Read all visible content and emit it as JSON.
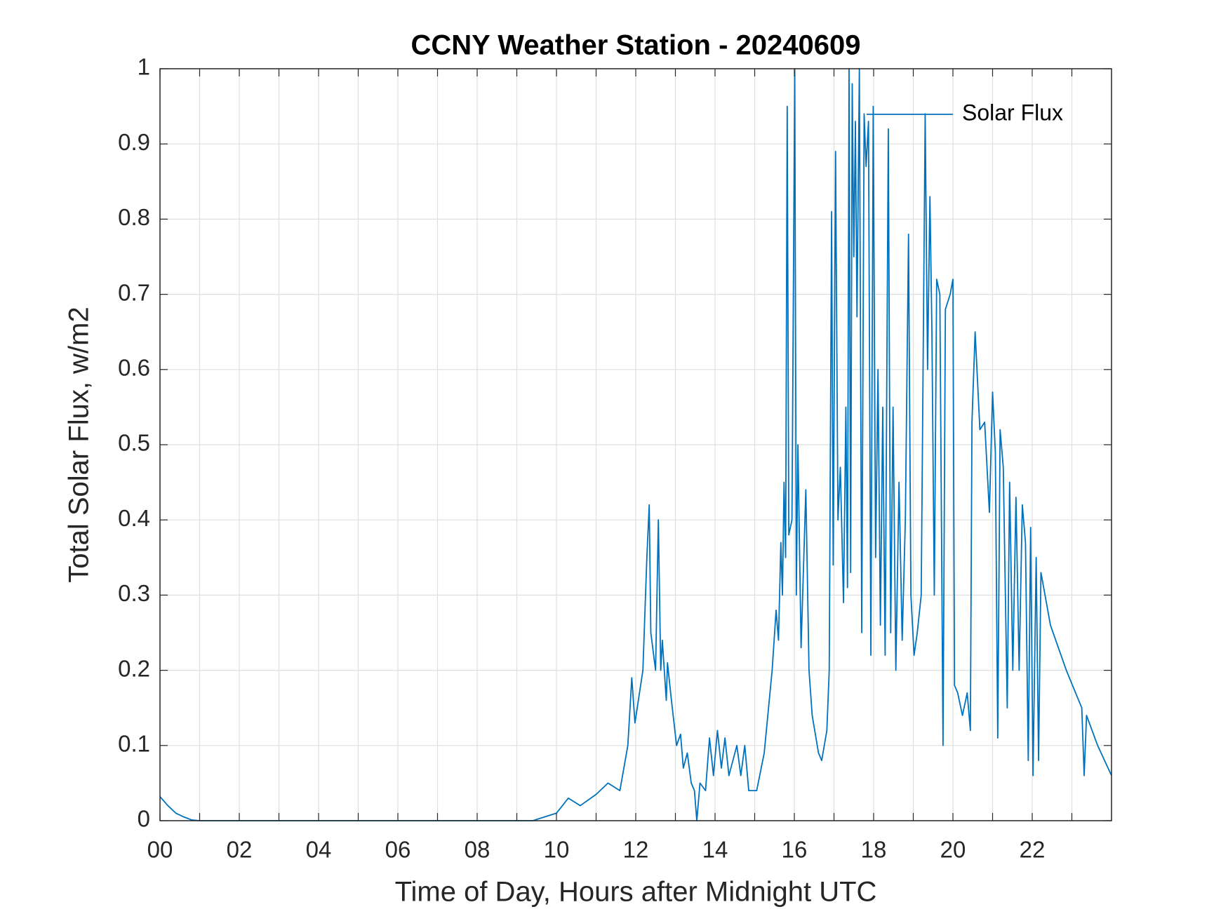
{
  "chart_data": {
    "type": "line",
    "title": "CCNY Weather Station - 20240609",
    "xlabel": "Time of Day, Hours after Midnight UTC",
    "ylabel": "Total Solar Flux, w/m2",
    "xlim": [
      0,
      24
    ],
    "ylim": [
      0,
      1
    ],
    "xticks": [
      {
        "value": 0,
        "label": "00"
      },
      {
        "value": 2,
        "label": "02"
      },
      {
        "value": 4,
        "label": "04"
      },
      {
        "value": 6,
        "label": "06"
      },
      {
        "value": 8,
        "label": "08"
      },
      10,
      12,
      14,
      16,
      18,
      20,
      22
    ],
    "xminorticks": [
      1,
      3,
      5,
      7,
      9,
      11,
      13,
      15,
      17,
      19,
      21,
      23
    ],
    "yticks": [
      0,
      0.1,
      0.2,
      0.3,
      0.4,
      0.5,
      0.6,
      0.7,
      0.8,
      0.9,
      1
    ],
    "grid": true,
    "legend": "northeast",
    "x": [
      0,
      0.2,
      0.4,
      0.6,
      0.8,
      1.0,
      9.4,
      10.0,
      10.3,
      10.6,
      11.0,
      11.3,
      11.6,
      11.8,
      11.9,
      11.98,
      12.18,
      12.28,
      12.34,
      12.38,
      12.5,
      12.57,
      12.63,
      12.67,
      12.77,
      12.8,
      12.9,
      13.03,
      13.13,
      13.2,
      13.3,
      13.4,
      13.48,
      13.54,
      13.62,
      13.76,
      13.86,
      13.96,
      14.06,
      14.16,
      14.25,
      14.35,
      14.55,
      14.65,
      14.75,
      14.85,
      15.05,
      15.24,
      15.44,
      15.54,
      15.6,
      15.66,
      15.7,
      15.74,
      15.78,
      15.82,
      15.86,
      15.94,
      16.01,
      16.05,
      16.09,
      16.17,
      16.29,
      16.37,
      16.45,
      16.61,
      16.69,
      16.82,
      16.88,
      16.94,
      16.98,
      17.04,
      17.1,
      17.16,
      17.24,
      17.3,
      17.34,
      17.38,
      17.42,
      17.46,
      17.5,
      17.54,
      17.58,
      17.64,
      17.7,
      17.76,
      17.81,
      17.87,
      17.93,
      17.99,
      18.05,
      18.11,
      18.17,
      18.23,
      18.29,
      18.37,
      18.43,
      18.49,
      18.56,
      18.64,
      18.72,
      18.8,
      18.88,
      18.94,
      19.02,
      19.1,
      19.2,
      19.3,
      19.36,
      19.42,
      19.47,
      19.53,
      19.59,
      19.67,
      19.75,
      19.81,
      19.93,
      20.0,
      20.04,
      20.12,
      20.24,
      20.36,
      20.44,
      20.48,
      20.56,
      20.68,
      20.8,
      20.92,
      21.0,
      21.07,
      21.13,
      21.19,
      21.27,
      21.37,
      21.43,
      21.51,
      21.59,
      21.67,
      21.75,
      21.83,
      21.9,
      21.96,
      22.02,
      22.1,
      22.16,
      22.22,
      22.46,
      22.86,
      23.25,
      23.31,
      23.37,
      23.65,
      24.0
    ],
    "series": [
      {
        "name": "Solar Flux",
        "color": "#0072bd",
        "values": [
          0.032,
          0.02,
          0.01,
          0.005,
          0.001,
          0,
          0,
          0.01,
          0.03,
          0.02,
          0.035,
          0.05,
          0.04,
          0.1,
          0.19,
          0.13,
          0.2,
          0.35,
          0.42,
          0.25,
          0.2,
          0.4,
          0.2,
          0.24,
          0.16,
          0.21,
          0.16,
          0.1,
          0.115,
          0.07,
          0.09,
          0.05,
          0.04,
          0,
          0.05,
          0.04,
          0.11,
          0.06,
          0.12,
          0.07,
          0.11,
          0.06,
          0.1,
          0.06,
          0.1,
          0.04,
          0.04,
          0.09,
          0.2,
          0.28,
          0.24,
          0.37,
          0.3,
          0.45,
          0.35,
          0.95,
          0.38,
          0.4,
          1.0,
          0.3,
          0.5,
          0.23,
          0.44,
          0.2,
          0.14,
          0.09,
          0.08,
          0.12,
          0.2,
          0.81,
          0.34,
          0.89,
          0.4,
          0.47,
          0.29,
          0.55,
          0.31,
          1.0,
          0.33,
          0.98,
          0.75,
          0.93,
          0.67,
          1.0,
          0.25,
          0.94,
          0.87,
          0.93,
          0.22,
          0.95,
          0.35,
          0.6,
          0.26,
          0.55,
          0.22,
          0.92,
          0.25,
          0.55,
          0.2,
          0.45,
          0.24,
          0.4,
          0.78,
          0.3,
          0.22,
          0.25,
          0.3,
          0.94,
          0.6,
          0.83,
          0.65,
          0.3,
          0.72,
          0.7,
          0.1,
          0.68,
          0.7,
          0.72,
          0.18,
          0.17,
          0.14,
          0.17,
          0.12,
          0.53,
          0.65,
          0.52,
          0.53,
          0.41,
          0.57,
          0.49,
          0.11,
          0.52,
          0.47,
          0.15,
          0.45,
          0.2,
          0.43,
          0.2,
          0.42,
          0.37,
          0.08,
          0.39,
          0.06,
          0.35,
          0.08,
          0.33,
          0.26,
          0.2,
          0.15,
          0.06,
          0.14,
          0.1,
          0.06
        ]
      }
    ]
  }
}
